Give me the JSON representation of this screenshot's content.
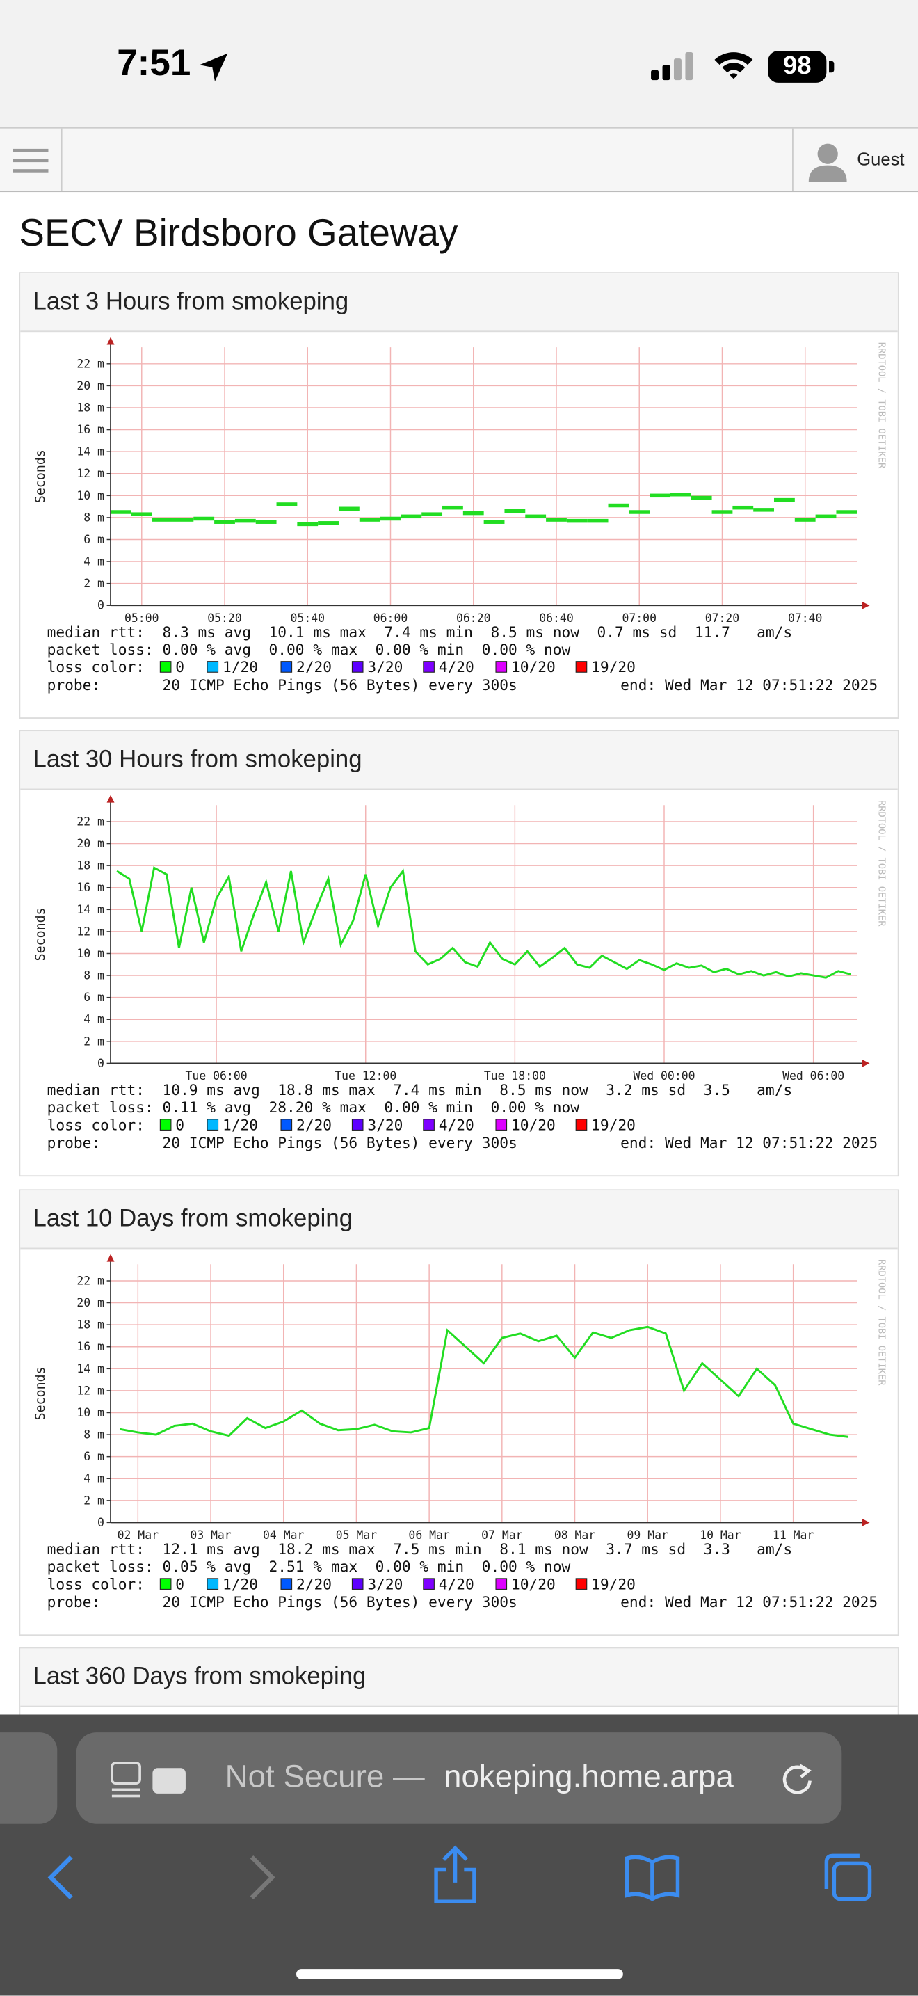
{
  "status_bar": {
    "time": "7:51",
    "battery": "98"
  },
  "toolbar": {
    "user": "Guest"
  },
  "page_title": "SECV Birdsboro Gateway",
  "panels": [
    {
      "title": "Last 3 Hours from smokeping",
      "chart_data": {
        "type": "step",
        "y_label": "Seconds",
        "side_text": "RRDTOOL / TOBI OETIKER",
        "color": "#22dd22",
        "categories": [
          null,
          "05:00",
          null,
          null,
          null,
          "05:20",
          null,
          null,
          null,
          "05:40",
          null,
          null,
          null,
          "06:00",
          null,
          null,
          null,
          "06:20",
          null,
          null,
          null,
          "06:40",
          null,
          null,
          null,
          "07:00",
          null,
          null,
          null,
          "07:20",
          null,
          null,
          null,
          "07:40",
          null,
          null
        ],
        "values": [
          8.5,
          8.3,
          7.8,
          7.8,
          7.9,
          7.6,
          7.7,
          7.6,
          9.2,
          7.4,
          7.5,
          8.8,
          7.8,
          7.9,
          8.1,
          8.3,
          8.9,
          8.4,
          7.6,
          8.6,
          8.1,
          7.8,
          7.7,
          7.7,
          9.1,
          8.5,
          10.0,
          10.1,
          9.8,
          8.5,
          8.9,
          8.7,
          9.6,
          7.8,
          8.1,
          8.5
        ],
        "ylim": [
          0,
          23.5
        ],
        "yticks": [
          0,
          {
            "value": 2,
            "label": "2 m"
          },
          {
            "value": 4,
            "label": "4 m"
          },
          {
            "value": 6,
            "label": "6 m"
          },
          {
            "value": 8,
            "label": "8 m"
          },
          {
            "value": 10,
            "label": "10 m"
          },
          {
            "value": 12,
            "label": "12 m"
          },
          {
            "value": 14,
            "label": "14 m"
          },
          {
            "value": 16,
            "label": "16 m"
          },
          {
            "value": 18,
            "label": "18 m"
          },
          {
            "value": 20,
            "label": "20 m"
          },
          {
            "value": 22,
            "label": "22 m"
          }
        ],
        "grid": true,
        "stats": [
          "median rtt:  8.3 ms avg  10.1 ms max  7.4 ms min  8.5 ms now  0.7 ms sd  11.7   am/s",
          "packet loss: 0.00 % avg  0.00 % max  0.00 % min  0.00 % now"
        ],
        "loss_label": "loss color:",
        "loss_colors": [
          {
            "color": "#00ff00",
            "label": "0"
          },
          {
            "color": "#00b8ff",
            "label": "1/20"
          },
          {
            "color": "#0059ff",
            "label": "2/20"
          },
          {
            "color": "#5e00ff",
            "label": "3/20"
          },
          {
            "color": "#7e00ff",
            "label": "4/20"
          },
          {
            "color": "#dd00ff",
            "label": "10/20"
          },
          {
            "color": "#ff0000",
            "label": "19/20"
          }
        ],
        "probe": "probe:       20 ICMP Echo Pings (56 Bytes) every 300s",
        "end": "end: Wed Mar 12 07:51:22 2025"
      }
    },
    {
      "title": "Last 30 Hours from smokeping",
      "chart_data": {
        "type": "line",
        "y_label": "Seconds",
        "side_text": "RRDTOOL / TOBI OETIKER",
        "color": "#22dd22",
        "categories": [
          null,
          null,
          null,
          null,
          null,
          null,
          null,
          null,
          "Tue 06:00",
          null,
          null,
          null,
          null,
          null,
          null,
          null,
          null,
          null,
          null,
          null,
          "Tue 12:00",
          null,
          null,
          null,
          null,
          null,
          null,
          null,
          null,
          null,
          null,
          null,
          "Tue 18:00",
          null,
          null,
          null,
          null,
          null,
          null,
          null,
          null,
          null,
          null,
          null,
          "Wed 00:00",
          null,
          null,
          null,
          null,
          null,
          null,
          null,
          null,
          null,
          null,
          null,
          "Wed 06:00",
          null,
          null,
          null
        ],
        "values": [
          17.5,
          16.8,
          12.0,
          17.8,
          17.2,
          10.5,
          16.0,
          11.0,
          15.0,
          17.0,
          10.2,
          13.5,
          16.5,
          12.0,
          17.5,
          11.0,
          14.0,
          16.8,
          10.8,
          13.0,
          17.2,
          12.5,
          16.0,
          17.5,
          10.2,
          9.0,
          9.5,
          10.5,
          9.2,
          8.8,
          11.0,
          9.5,
          9.0,
          10.2,
          8.8,
          9.6,
          10.5,
          9.0,
          8.7,
          9.8,
          9.2,
          8.6,
          9.4,
          9.0,
          8.5,
          9.1,
          8.7,
          8.9,
          8.3,
          8.6,
          8.1,
          8.4,
          8.0,
          8.3,
          7.9,
          8.2,
          8.0,
          7.8,
          8.4,
          8.1
        ],
        "ylim": [
          0,
          23.5
        ],
        "yticks": [
          0,
          {
            "value": 2,
            "label": "2 m"
          },
          {
            "value": 4,
            "label": "4 m"
          },
          {
            "value": 6,
            "label": "6 m"
          },
          {
            "value": 8,
            "label": "8 m"
          },
          {
            "value": 10,
            "label": "10 m"
          },
          {
            "value": 12,
            "label": "12 m"
          },
          {
            "value": 14,
            "label": "14 m"
          },
          {
            "value": 16,
            "label": "16 m"
          },
          {
            "value": 18,
            "label": "18 m"
          },
          {
            "value": 20,
            "label": "20 m"
          },
          {
            "value": 22,
            "label": "22 m"
          }
        ],
        "grid": true,
        "stats": [
          "median rtt:  10.9 ms avg  18.8 ms max  7.4 ms min  8.5 ms now  3.2 ms sd  3.5   am/s",
          "packet loss: 0.11 % avg  28.20 % max  0.00 % min  0.00 % now"
        ],
        "loss_label": "loss color:",
        "loss_colors": [
          {
            "color": "#00ff00",
            "label": "0"
          },
          {
            "color": "#00b8ff",
            "label": "1/20"
          },
          {
            "color": "#0059ff",
            "label": "2/20"
          },
          {
            "color": "#5e00ff",
            "label": "3/20"
          },
          {
            "color": "#7e00ff",
            "label": "4/20"
          },
          {
            "color": "#dd00ff",
            "label": "10/20"
          },
          {
            "color": "#ff0000",
            "label": "19/20"
          }
        ],
        "probe": "probe:       20 ICMP Echo Pings (56 Bytes) every 300s",
        "end": "end: Wed Mar 12 07:51:22 2025"
      }
    },
    {
      "title": "Last 10 Days from smokeping",
      "chart_data": {
        "type": "line",
        "y_label": "Seconds",
        "side_text": "RRDTOOL / TOBI OETIKER",
        "color": "#22dd22",
        "categories": [
          null,
          "02 Mar",
          null,
          null,
          null,
          "03 Mar",
          null,
          null,
          null,
          "04 Mar",
          null,
          null,
          null,
          "05 Mar",
          null,
          null,
          null,
          "06 Mar",
          null,
          null,
          null,
          "07 Mar",
          null,
          null,
          null,
          "08 Mar",
          null,
          null,
          null,
          "09 Mar",
          null,
          null,
          null,
          "10 Mar",
          null,
          null,
          null,
          "11 Mar",
          null,
          null,
          null
        ],
        "values": [
          8.5,
          8.2,
          8.0,
          8.8,
          9.0,
          8.3,
          7.9,
          9.5,
          8.6,
          9.2,
          10.2,
          9.0,
          8.4,
          8.5,
          8.9,
          8.3,
          8.2,
          8.6,
          17.5,
          16.0,
          14.5,
          16.8,
          17.2,
          16.5,
          17.0,
          15.0,
          17.3,
          16.8,
          17.5,
          17.8,
          17.2,
          12.0,
          14.5,
          13.0,
          11.5,
          14.0,
          12.5,
          9.0,
          8.5,
          8.0,
          7.8
        ],
        "ylim": [
          0,
          23.5
        ],
        "yticks": [
          0,
          {
            "value": 2,
            "label": "2 m"
          },
          {
            "value": 4,
            "label": "4 m"
          },
          {
            "value": 6,
            "label": "6 m"
          },
          {
            "value": 8,
            "label": "8 m"
          },
          {
            "value": 10,
            "label": "10 m"
          },
          {
            "value": 12,
            "label": "12 m"
          },
          {
            "value": 14,
            "label": "14 m"
          },
          {
            "value": 16,
            "label": "16 m"
          },
          {
            "value": 18,
            "label": "18 m"
          },
          {
            "value": 20,
            "label": "20 m"
          },
          {
            "value": 22,
            "label": "22 m"
          }
        ],
        "grid": true,
        "stats": [
          "median rtt:  12.1 ms avg  18.2 ms max  7.5 ms min  8.1 ms now  3.7 ms sd  3.3   am/s",
          "packet loss: 0.05 % avg  2.51 % max  0.00 % min  0.00 % now"
        ],
        "loss_label": "loss color:",
        "loss_colors": [
          {
            "color": "#00ff00",
            "label": "0"
          },
          {
            "color": "#00b8ff",
            "label": "1/20"
          },
          {
            "color": "#0059ff",
            "label": "2/20"
          },
          {
            "color": "#5e00ff",
            "label": "3/20"
          },
          {
            "color": "#7e00ff",
            "label": "4/20"
          },
          {
            "color": "#dd00ff",
            "label": "10/20"
          },
          {
            "color": "#ff0000",
            "label": "19/20"
          }
        ],
        "probe": "probe:       20 ICMP Echo Pings (56 Bytes) every 300s",
        "end": "end: Wed Mar 12 07:51:22 2025"
      }
    }
  ],
  "next_panel_title": "Last 360 Days from smokeping",
  "address_bar": {
    "security": "Not Secure —",
    "host": "nokeping.home.arpa"
  }
}
